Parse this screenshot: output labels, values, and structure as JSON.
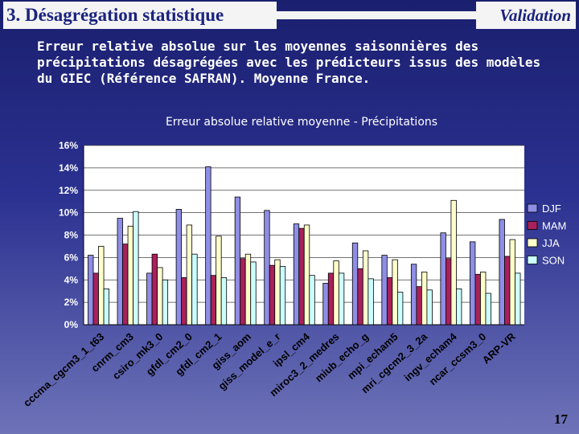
{
  "header": {
    "title": "3. Désagrégation statistique",
    "tag": "Validation"
  },
  "intro_text": "Erreur relative absolue sur les moyennes saisonnières des précipitations désagrégées avec les prédicteurs issus des modèles du GIEC (Référence SAFRAN). Moyenne France.",
  "page_number": "17",
  "colors": {
    "DJF": "#8e8ee6",
    "MAM": "#a8215a",
    "JJA": "#ffffcc",
    "SON": "#ccffff"
  },
  "chart_data": {
    "type": "bar",
    "title": "Erreur absolue relative moyenne - Précipitations",
    "xlabel": "",
    "ylabel": "",
    "ylim": [
      0,
      16
    ],
    "yticks": [
      "0%",
      "2%",
      "4%",
      "6%",
      "8%",
      "10%",
      "12%",
      "14%",
      "16%"
    ],
    "legend_position": "right",
    "categories": [
      "cccma_cgcm3_1_t63",
      "cnrm_cm3",
      "csiro_mk3_0",
      "gfdl_cm2_0",
      "gfdl_cm2_1",
      "giss_aom",
      "giss_model_e_r",
      "ipsl_cm4",
      "miroc3_2_medres",
      "miub_echo_g",
      "mpi_echam5",
      "mri_cgcm2_3_2a",
      "ingv_echam4",
      "ncar_ccsm3_0",
      "ARP-VR"
    ],
    "series": [
      {
        "name": "DJF",
        "values": [
          6.2,
          9.5,
          4.6,
          10.3,
          14.1,
          11.4,
          10.2,
          9.0,
          3.7,
          7.3,
          6.2,
          5.4,
          8.2,
          7.4,
          9.4
        ]
      },
      {
        "name": "MAM",
        "values": [
          4.6,
          7.2,
          6.3,
          4.2,
          4.4,
          5.9,
          5.3,
          8.6,
          4.6,
          5.0,
          4.2,
          3.4,
          5.9,
          4.5,
          6.1
        ]
      },
      {
        "name": "JJA",
        "values": [
          7.0,
          8.8,
          5.1,
          8.9,
          7.9,
          6.3,
          5.8,
          8.9,
          5.7,
          6.6,
          5.8,
          4.7,
          11.1,
          4.7,
          7.6
        ]
      },
      {
        "name": "SON",
        "values": [
          3.2,
          10.1,
          4.0,
          6.3,
          4.2,
          5.6,
          5.2,
          4.4,
          4.6,
          4.1,
          2.9,
          3.1,
          3.2,
          2.8,
          4.6
        ]
      }
    ]
  }
}
